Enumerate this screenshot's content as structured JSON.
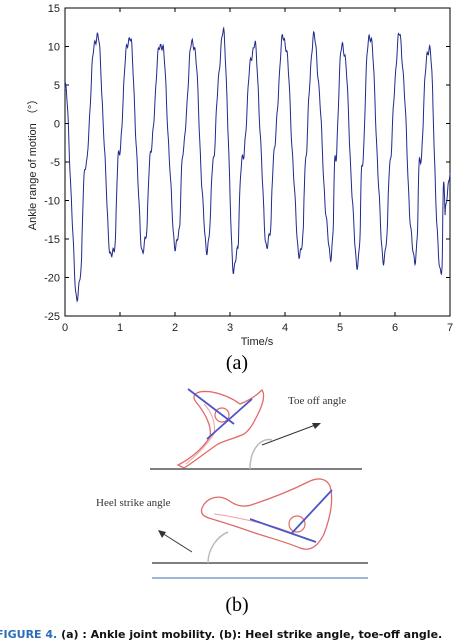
{
  "chart_data": {
    "type": "line",
    "title": "",
    "xlabel": "Time/s",
    "ylabel": "Ankle range of motion （°）",
    "xlim": [
      0,
      7
    ],
    "ylim": [
      -25,
      15
    ],
    "x_ticks": [
      "0",
      "1",
      "2",
      "3",
      "4",
      "5",
      "6",
      "7"
    ],
    "y_ticks": [
      "15",
      "10",
      "5",
      "0",
      "-5",
      "-10",
      "-15",
      "-20",
      "-25"
    ],
    "line_color": "#1f2a8a",
    "grid": false,
    "peaks": [
      {
        "t": 0.58,
        "y": 11.6
      },
      {
        "t": 1.17,
        "y": 11.4
      },
      {
        "t": 1.75,
        "y": 10.6
      },
      {
        "t": 2.33,
        "y": 10.8
      },
      {
        "t": 2.88,
        "y": 11.5
      },
      {
        "t": 3.44,
        "y": 10.2
      },
      {
        "t": 3.98,
        "y": 11.3
      },
      {
        "t": 4.52,
        "y": 11.0
      },
      {
        "t": 5.05,
        "y": 10.4
      },
      {
        "t": 5.54,
        "y": 11.8
      },
      {
        "t": 6.08,
        "y": 11.2
      },
      {
        "t": 6.62,
        "y": 10.2
      }
    ],
    "troughs": [
      {
        "t": 0.22,
        "y": -22.3
      },
      {
        "t": 0.85,
        "y": -17.5
      },
      {
        "t": 1.42,
        "y": -16.5
      },
      {
        "t": 2.02,
        "y": -16.0
      },
      {
        "t": 2.58,
        "y": -16.0
      },
      {
        "t": 3.07,
        "y": -18.7
      },
      {
        "t": 3.68,
        "y": -16.0
      },
      {
        "t": 4.28,
        "y": -17.2
      },
      {
        "t": 4.83,
        "y": -16.8
      },
      {
        "t": 5.32,
        "y": -18.0
      },
      {
        "t": 5.8,
        "y": -17.5
      },
      {
        "t": 6.35,
        "y": -17.5
      },
      {
        "t": 6.82,
        "y": -19.0
      }
    ],
    "start": {
      "t": 0.0,
      "y": 4.5
    },
    "end": {
      "t": 7.0,
      "y": -6.5
    }
  },
  "figure": {
    "label_a": "(a)",
    "label_b": "(b)",
    "toe_off_label": "Toe off angle",
    "heel_strike_label": "Heel strike angle",
    "caption_prefix": "FIGURE 4.",
    "caption_text": "(a) : Ankle joint mobility. (b): Heel strike angle, toe-off angle."
  }
}
